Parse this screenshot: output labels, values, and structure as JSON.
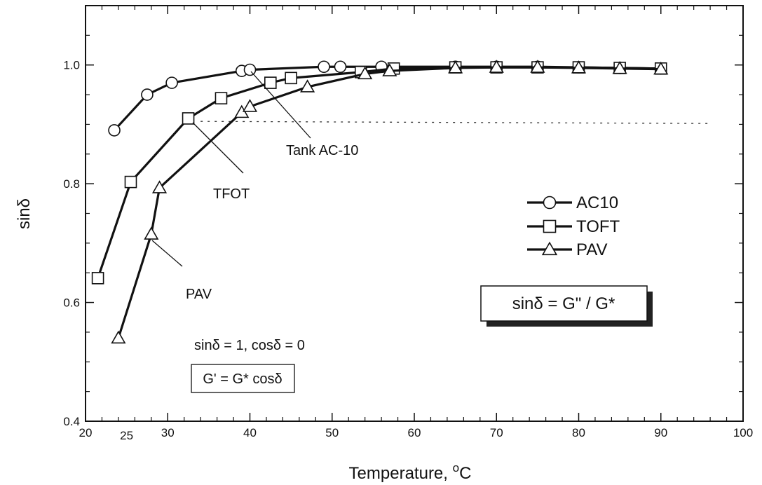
{
  "chart_data": {
    "type": "line",
    "xlabel": "Temperature, ",
    "xlabel_unit": "C",
    "xlabel_unit_sup": "o",
    "ylabel": "sinδ",
    "xlim": [
      20,
      100
    ],
    "ylim": [
      0.4,
      1.1
    ],
    "x_ticks": [
      20,
      30,
      40,
      50,
      60,
      70,
      80,
      90,
      100
    ],
    "x_tick_labels": [
      "20",
      "30",
      "40",
      "50",
      "60",
      "70",
      "80",
      "90",
      "100"
    ],
    "extra_x_tick": {
      "value": 25,
      "label": "25"
    },
    "y_ticks": [
      0.4,
      0.6,
      0.8,
      1.0
    ],
    "y_tick_labels": [
      "0.4",
      "0.6",
      "0.8",
      "1.0"
    ],
    "grid": false,
    "legend_position": "right",
    "series": [
      {
        "name": "AC10",
        "marker": "circle",
        "x": [
          23.5,
          27.5,
          30.5,
          39.0,
          40.0,
          49.0,
          51.0,
          56.0,
          65.0,
          70.0,
          75.0,
          80.0,
          85.0,
          90.0
        ],
        "y": [
          0.89,
          0.95,
          0.97,
          0.99,
          0.992,
          0.997,
          0.997,
          0.997,
          0.997,
          0.997,
          0.997,
          0.996,
          0.995,
          0.994
        ]
      },
      {
        "name": "TOFT",
        "marker": "square",
        "x": [
          21.5,
          25.5,
          32.5,
          36.5,
          42.5,
          45.0,
          53.5,
          57.5,
          65.0,
          70.0,
          75.0,
          80.0,
          85.0,
          90.0
        ],
        "y": [
          0.641,
          0.803,
          0.91,
          0.944,
          0.97,
          0.978,
          0.988,
          0.994,
          0.996,
          0.996,
          0.996,
          0.996,
          0.995,
          0.994
        ]
      },
      {
        "name": "PAV",
        "marker": "triangle",
        "x": [
          24.0,
          28.0,
          29.0,
          39.0,
          40.0,
          47.0,
          54.0,
          57.0,
          65.0,
          70.0,
          75.0,
          80.0,
          85.0,
          90.0
        ],
        "y": [
          0.54,
          0.715,
          0.793,
          0.92,
          0.93,
          0.963,
          0.985,
          0.99,
          0.995,
          0.996,
          0.996,
          0.995,
          0.994,
          0.993
        ]
      }
    ],
    "reference_line": {
      "y": 0.905,
      "style": "dotted"
    },
    "annotations": {
      "tank": "Tank AC-10",
      "tfot": "TFOT",
      "pav": "PAV",
      "sin_cos": "sinδ = 1, cosδ = 0",
      "gprime_box": "G' = G* cosδ",
      "sin_box": "sinδ = G\" / G*"
    }
  }
}
